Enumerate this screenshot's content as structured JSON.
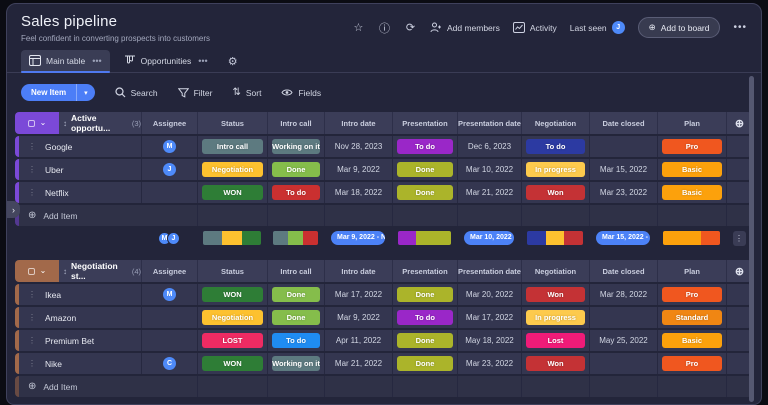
{
  "board": {
    "title": "Sales pipeline",
    "subtitle": "Feel confident in converting prospects into customers"
  },
  "top_actions": {
    "add_members": "Add members",
    "activity": "Activity",
    "last_seen": "Last seen",
    "last_seen_avatar": "J",
    "add_to_board": "Add to board"
  },
  "tabs": [
    {
      "label": "Main table"
    },
    {
      "label": "Opportunities"
    }
  ],
  "toolbar": {
    "new_item": "New Item",
    "search": "Search",
    "filter": "Filter",
    "sort": "Sort",
    "fields": "Fields"
  },
  "columns": [
    "Assignee",
    "Status",
    "Intro call",
    "Intro date",
    "Presentation",
    "Presentation date",
    "Negotiation",
    "Date closed",
    "Plan"
  ],
  "add_item_label": "Add Item",
  "colors": {
    "accent_blue": "#4c7ef7",
    "avatar_blue": "#4e8af9"
  },
  "groups": [
    {
      "title": "Active opportu...",
      "count": "(3)",
      "color": "#7b49d8",
      "rows": [
        {
          "name": "Google",
          "assignee": "M",
          "status": {
            "label": "Intro call",
            "color": "#5d7a80"
          },
          "intro_call": {
            "label": "Working on it",
            "color": "#5d7a80"
          },
          "intro_date": "Nov 28, 2023",
          "presentation": {
            "label": "To do",
            "color": "#9a27c8"
          },
          "presentation_date": "Dec 6, 2023",
          "negotiation": {
            "label": "To do",
            "color": "#2c3aa2"
          },
          "date_closed": "",
          "plan": {
            "label": "Pro",
            "color": "#f0571f"
          }
        },
        {
          "name": "Uber",
          "assignee": "J",
          "status": {
            "label": "Negotiation",
            "color": "#fdc12f"
          },
          "intro_call": {
            "label": "Done",
            "color": "#85bd4b"
          },
          "intro_date": "Mar 9, 2022",
          "presentation": {
            "label": "Done",
            "color": "#abb42a"
          },
          "presentation_date": "Mar 10, 2022",
          "negotiation": {
            "label": "In progress",
            "color": "#fdca4d"
          },
          "date_closed": "Mar 15, 2022",
          "plan": {
            "label": "Basic",
            "color": "#fca10c"
          }
        },
        {
          "name": "Netflix",
          "assignee": "",
          "status": {
            "label": "WON",
            "color": "#2e7d36"
          },
          "intro_call": {
            "label": "To do",
            "color": "#ca3030"
          },
          "intro_date": "Mar 18, 2022",
          "presentation": {
            "label": "Done",
            "color": "#abb42a"
          },
          "presentation_date": "Mar 21, 2022",
          "negotiation": {
            "label": "Won",
            "color": "#c43235"
          },
          "date_closed": "Mar 23, 2022",
          "plan": {
            "label": "Basic",
            "color": "#fca10c"
          }
        }
      ],
      "summary": {
        "assignees": [
          "M",
          "J"
        ],
        "status_bar": [
          {
            "color": "#5d7a80",
            "w": 1
          },
          {
            "color": "#fdc12f",
            "w": 1
          },
          {
            "color": "#2e7d36",
            "w": 1
          }
        ],
        "intro_call_bar": [
          {
            "color": "#5d7a80",
            "w": 1
          },
          {
            "color": "#85bd4b",
            "w": 1
          },
          {
            "color": "#ca3030",
            "w": 1
          }
        ],
        "intro_date_range": "Mar 9, 2022 - N...",
        "presentation_bar": [
          {
            "color": "#9a27c8",
            "w": 1
          },
          {
            "color": "#abb42a",
            "w": 2
          }
        ],
        "presentation_date_range": "Mar 10, 2022 - ...",
        "negotiation_bar": [
          {
            "color": "#2c3aa2",
            "w": 1
          },
          {
            "color": "#fdc12f",
            "w": 1
          },
          {
            "color": "#c43235",
            "w": 1
          }
        ],
        "date_closed_range": "Mar 15, 2022 - ...",
        "plan_bar": [
          {
            "color": "#fca10c",
            "w": 2
          },
          {
            "color": "#f0571f",
            "w": 1
          }
        ]
      }
    },
    {
      "title": "Negotiation st...",
      "count": "(4)",
      "color": "#a2694a",
      "rows": [
        {
          "name": "Ikea",
          "assignee": "M",
          "status": {
            "label": "WON",
            "color": "#2e7d36"
          },
          "intro_call": {
            "label": "Done",
            "color": "#85bd4b"
          },
          "intro_date": "Mar 17, 2022",
          "presentation": {
            "label": "Done",
            "color": "#abb42a"
          },
          "presentation_date": "Mar 20, 2022",
          "negotiation": {
            "label": "Won",
            "color": "#c43235"
          },
          "date_closed": "Mar 28, 2022",
          "plan": {
            "label": "Pro",
            "color": "#f0571f"
          }
        },
        {
          "name": "Amazon",
          "assignee": "",
          "status": {
            "label": "Negotiation",
            "color": "#fdc12f"
          },
          "intro_call": {
            "label": "Done",
            "color": "#85bd4b"
          },
          "intro_date": "Mar 9, 2022",
          "presentation": {
            "label": "To do",
            "color": "#9a27c8"
          },
          "presentation_date": "Mar 17, 2022",
          "negotiation": {
            "label": "In progress",
            "color": "#fdca4d"
          },
          "date_closed": "",
          "plan": {
            "label": "Standard",
            "color": "#f08613"
          }
        },
        {
          "name": "Premium Bet",
          "assignee": "",
          "status": {
            "label": "LOST",
            "color": "#ef2b63"
          },
          "intro_call": {
            "label": "To do",
            "color": "#1f8cf2"
          },
          "intro_date": "Apr 11, 2022",
          "presentation": {
            "label": "Done",
            "color": "#abb42a"
          },
          "presentation_date": "May 18, 2022",
          "negotiation": {
            "label": "Lost",
            "color": "#f01b78"
          },
          "date_closed": "May 25, 2022",
          "plan": {
            "label": "Basic",
            "color": "#fca10c"
          }
        },
        {
          "name": "Nike",
          "assignee": "C",
          "status": {
            "label": "WON",
            "color": "#2e7d36"
          },
          "intro_call": {
            "label": "Working on it",
            "color": "#5d7a80"
          },
          "intro_date": "Mar 21, 2022",
          "presentation": {
            "label": "Done",
            "color": "#abb42a"
          },
          "presentation_date": "Mar 23, 2022",
          "negotiation": {
            "label": "Won",
            "color": "#c43235"
          },
          "date_closed": "",
          "plan": {
            "label": "Pro",
            "color": "#f0571f"
          }
        }
      ]
    }
  ]
}
